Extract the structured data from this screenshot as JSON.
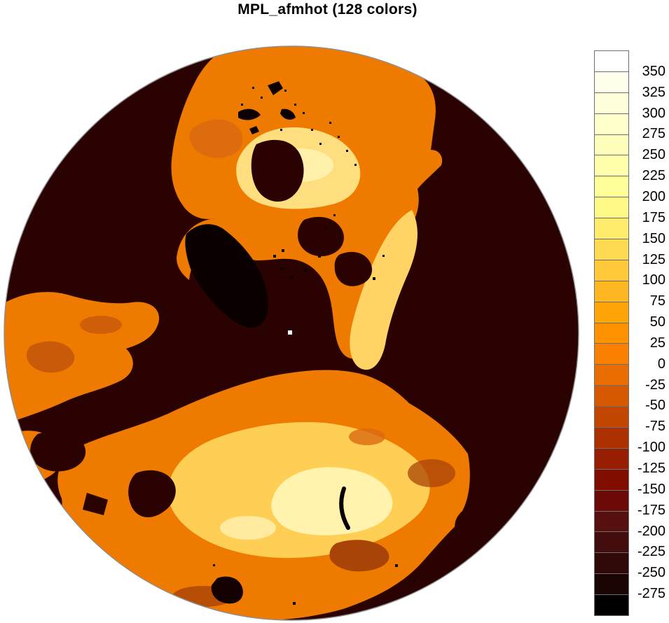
{
  "title": "MPL_afmhot (128 colors)",
  "colorbar": {
    "tick_labels": [
      "350",
      "325",
      "300",
      "275",
      "250",
      "225",
      "200",
      "175",
      "150",
      "125",
      "100",
      "75",
      "50",
      "25",
      "0",
      "-25",
      "-50",
      "-75",
      "-100",
      "-125",
      "-150",
      "-175",
      "-200",
      "-225",
      "-250",
      "-275"
    ],
    "colors_top_to_bottom": [
      "#ffffff",
      "#ffffeb",
      "#ffffdc",
      "#ffffcc",
      "#ffffbc",
      "#ffffab",
      "#ffff9a",
      "#fffa87",
      "#ffec6d",
      "#ffdb54",
      "#ffc93a",
      "#ffb721",
      "#ffa507",
      "#ff9200",
      "#f98000",
      "#e96d00",
      "#d65900",
      "#c24500",
      "#ad3100",
      "#971e00",
      "#800d00",
      "#6c0a07",
      "#580f0f",
      "#430d0d",
      "#2f0808",
      "#1b0404",
      "#000000"
    ],
    "border_color": "#6e6e6e"
  },
  "map": {
    "palette": {
      "ocean_dark": "#2b0202",
      "icecap_black": "#0a0000",
      "land_orange": "#ef7a00",
      "land_orange_dark": "#c95a0a",
      "land_brown": "#a84408",
      "land_bright": "#ffce55",
      "land_pale": "#ffde7f",
      "land_cream": "#fff3ae",
      "rim_gray": "#8f8f8f",
      "pole_dot": "#ffffff"
    }
  },
  "chart_data": {
    "type": "heatmap",
    "title": "MPL_afmhot (128 colors)",
    "colormap": "MPL_afmhot",
    "n_colors": 128,
    "projection": "polar-stereographic (north)",
    "levels": [
      -275,
      -250,
      -225,
      -200,
      -175,
      -150,
      -125,
      -100,
      -75,
      -50,
      -25,
      0,
      25,
      50,
      75,
      100,
      125,
      150,
      175,
      200,
      225,
      250,
      275,
      300,
      325,
      350
    ],
    "level_step": 25,
    "colorbar_colors_top_to_bottom": [
      "#ffffff",
      "#ffffeb",
      "#ffffdc",
      "#ffffcc",
      "#ffffbc",
      "#ffffab",
      "#ffff9a",
      "#fffa87",
      "#ffec6d",
      "#ffdb54",
      "#ffc93a",
      "#ffb721",
      "#ffa507",
      "#ff9200",
      "#f98000",
      "#e96d00",
      "#d65900",
      "#c24500",
      "#ad3100",
      "#971e00",
      "#800d00",
      "#6c0a07",
      "#580f0f",
      "#430d0d",
      "#2f0808",
      "#1b0404",
      "#000000"
    ],
    "legend_position": "right",
    "grid": false
  }
}
